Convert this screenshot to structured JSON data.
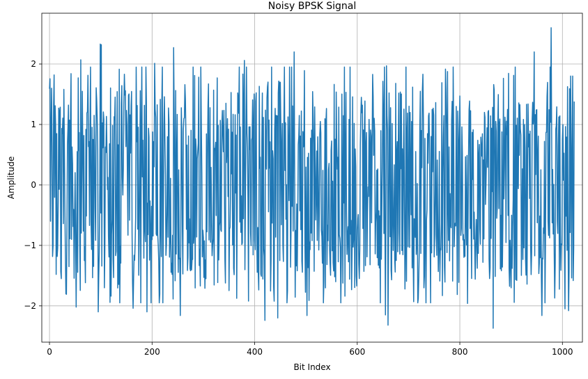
{
  "chart_data": {
    "type": "line",
    "title": "Noisy BPSK Signal",
    "xlabel": "Bit Index",
    "ylabel": "Amplitude",
    "xlim": [
      -15,
      1039
    ],
    "ylim": [
      -2.6,
      2.84
    ],
    "xticks": [
      0,
      200,
      400,
      600,
      800,
      1000
    ],
    "xtick_labels": [
      "0",
      "200",
      "400",
      "600",
      "800",
      "1000"
    ],
    "yticks": [
      -2,
      -1,
      0,
      1,
      2
    ],
    "ytick_labels": [
      "−2",
      "−1",
      "0",
      "1",
      "2"
    ],
    "grid": true,
    "color": "#1f77b4",
    "series": [
      {
        "n_points": 1024,
        "noise_seed": 7,
        "symbol_amplitude": 1,
        "noise_std": 0.5,
        "anchors": [
          {
            "x": 0,
            "y": 1.59
          },
          {
            "x": 2,
            "y": -0.6
          },
          {
            "x": 4,
            "y": 1.6
          },
          {
            "x": 9,
            "y": 1.82
          },
          {
            "x": 13,
            "y": -1.48
          },
          {
            "x": 23,
            "y": -1.55
          },
          {
            "x": 28,
            "y": 1.58
          },
          {
            "x": 52,
            "y": -2.02
          },
          {
            "x": 61,
            "y": 2.07
          },
          {
            "x": 95,
            "y": -2.1
          },
          {
            "x": 99,
            "y": 2.33
          },
          {
            "x": 101,
            "y": 2.32
          },
          {
            "x": 163,
            "y": -2.04
          },
          {
            "x": 190,
            "y": -2.1
          },
          {
            "x": 205,
            "y": 2.01
          },
          {
            "x": 242,
            "y": 2.27
          },
          {
            "x": 255,
            "y": -2.16
          },
          {
            "x": 380,
            "y": 2.06
          },
          {
            "x": 420,
            "y": -2.24
          },
          {
            "x": 445,
            "y": -2.2
          },
          {
            "x": 477,
            "y": 2.2
          },
          {
            "x": 502,
            "y": -2.16
          },
          {
            "x": 655,
            "y": -2.15
          },
          {
            "x": 657,
            "y": 1.97
          },
          {
            "x": 660,
            "y": -2.32
          },
          {
            "x": 815,
            "y": -1.96
          },
          {
            "x": 865,
            "y": -2.37
          },
          {
            "x": 945,
            "y": 2.2
          },
          {
            "x": 960,
            "y": -2.16
          },
          {
            "x": 978,
            "y": 2.6
          },
          {
            "x": 1005,
            "y": -2.05
          },
          {
            "x": 1012,
            "y": -2.08
          },
          {
            "x": 1016,
            "y": 1.8
          },
          {
            "x": 1020,
            "y": 1.8
          },
          {
            "x": 1023,
            "y": 1.38
          }
        ]
      }
    ]
  }
}
